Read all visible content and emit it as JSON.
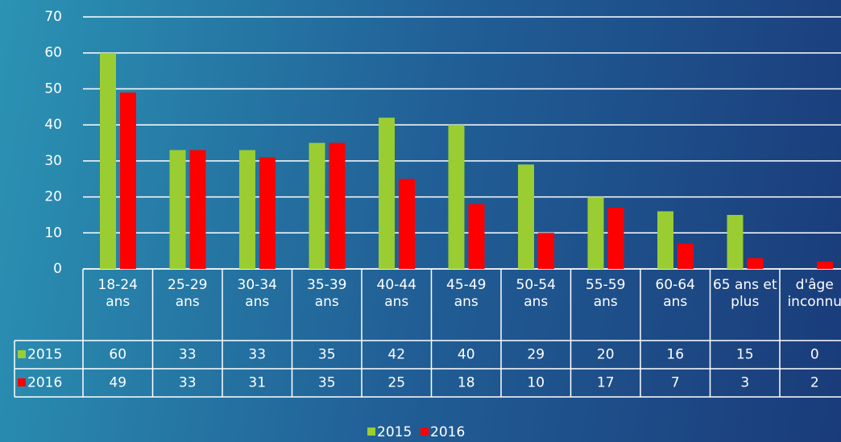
{
  "chart_data": {
    "type": "bar",
    "categories": [
      "18-24 ans",
      "25-29 ans",
      "30-34 ans",
      "35-39 ans",
      "40-44 ans",
      "45-49 ans",
      "50-54 ans",
      "55-59 ans",
      "60-64 ans",
      "65 ans et plus",
      "d'âge inconnu"
    ],
    "series": [
      {
        "name": "2015",
        "color": "#9acd32",
        "values": [
          60,
          33,
          33,
          35,
          42,
          40,
          29,
          20,
          16,
          15,
          0
        ]
      },
      {
        "name": "2016",
        "color": "#ff0000",
        "values": [
          49,
          33,
          31,
          35,
          25,
          18,
          10,
          17,
          7,
          3,
          2
        ]
      }
    ],
    "ylim": [
      0,
      70
    ],
    "yticks": [
      0,
      10,
      20,
      30,
      40,
      50,
      60,
      70
    ],
    "grid": true,
    "legend": "bottom"
  }
}
